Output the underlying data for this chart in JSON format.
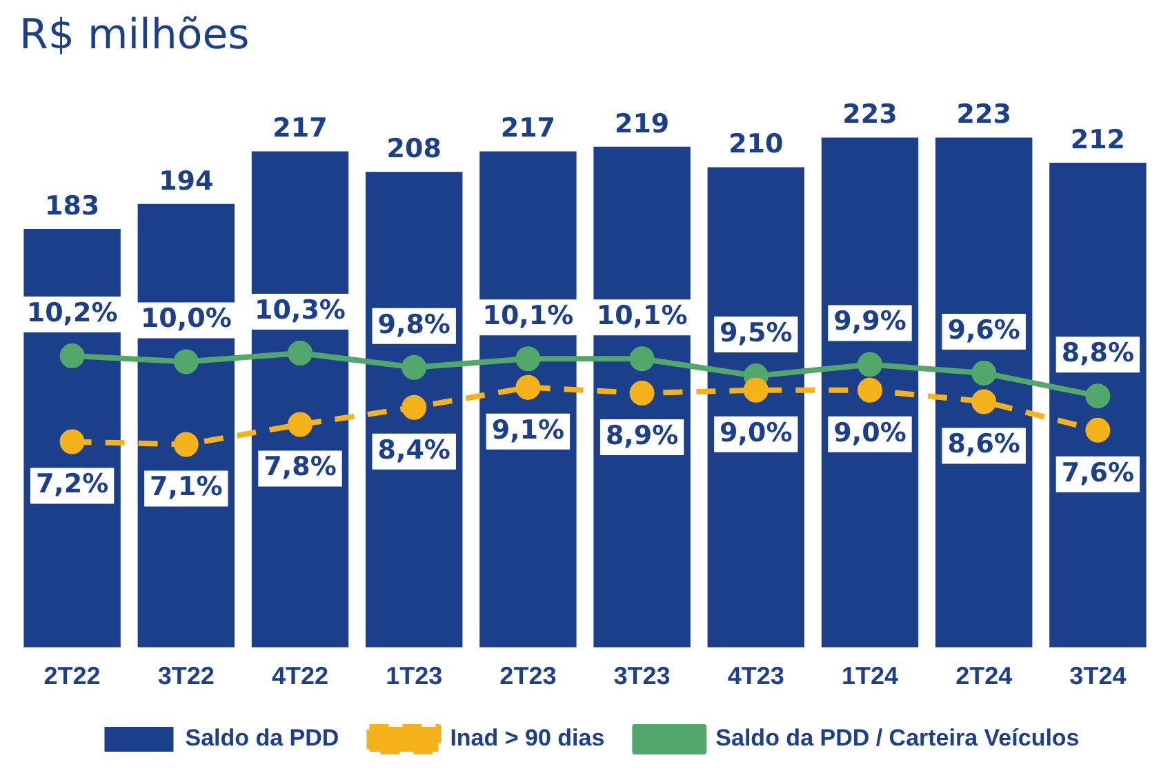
{
  "chart_data": {
    "type": "bar",
    "title": "R$ milhões",
    "categories": [
      "2T22",
      "3T22",
      "4T22",
      "1T23",
      "2T23",
      "3T23",
      "4T23",
      "1T24",
      "2T24",
      "3T24"
    ],
    "series": [
      {
        "name": "Saldo da PDD",
        "color": "#1c3f8c",
        "values": [
          183,
          194,
          217,
          208,
          217,
          219,
          210,
          223,
          223,
          212
        ]
      },
      {
        "name": "Inad > 90 dias",
        "type": "line",
        "axis": "y2",
        "color": "#f6b21b",
        "line_style": "dashed",
        "marker": "circle",
        "values": [
          7.2,
          7.1,
          7.8,
          8.4,
          9.1,
          8.9,
          9.0,
          9.0,
          8.6,
          7.6
        ],
        "value_labels": [
          "7,2%",
          "7,1%",
          "7,8%",
          "8,4%",
          "9,1%",
          "8,9%",
          "9,0%",
          "9,0%",
          "8,6%",
          "7,6%"
        ]
      },
      {
        "name": "Saldo da PDD / Carteira Veículos",
        "type": "line",
        "axis": "y2",
        "color": "#52a86a",
        "line_style": "solid",
        "marker": "circle",
        "values": [
          10.2,
          10.0,
          10.3,
          9.8,
          10.1,
          10.1,
          9.5,
          9.9,
          9.6,
          8.8
        ],
        "value_labels": [
          "10,2%",
          "10,0%",
          "10,3%",
          "9,8%",
          "10,1%",
          "10,1%",
          "9,5%",
          "9,9%",
          "9,6%",
          "8,8%"
        ]
      }
    ],
    "data_labels": true,
    "tick_labels": "x",
    "grid": false,
    "legend": "bottom"
  }
}
